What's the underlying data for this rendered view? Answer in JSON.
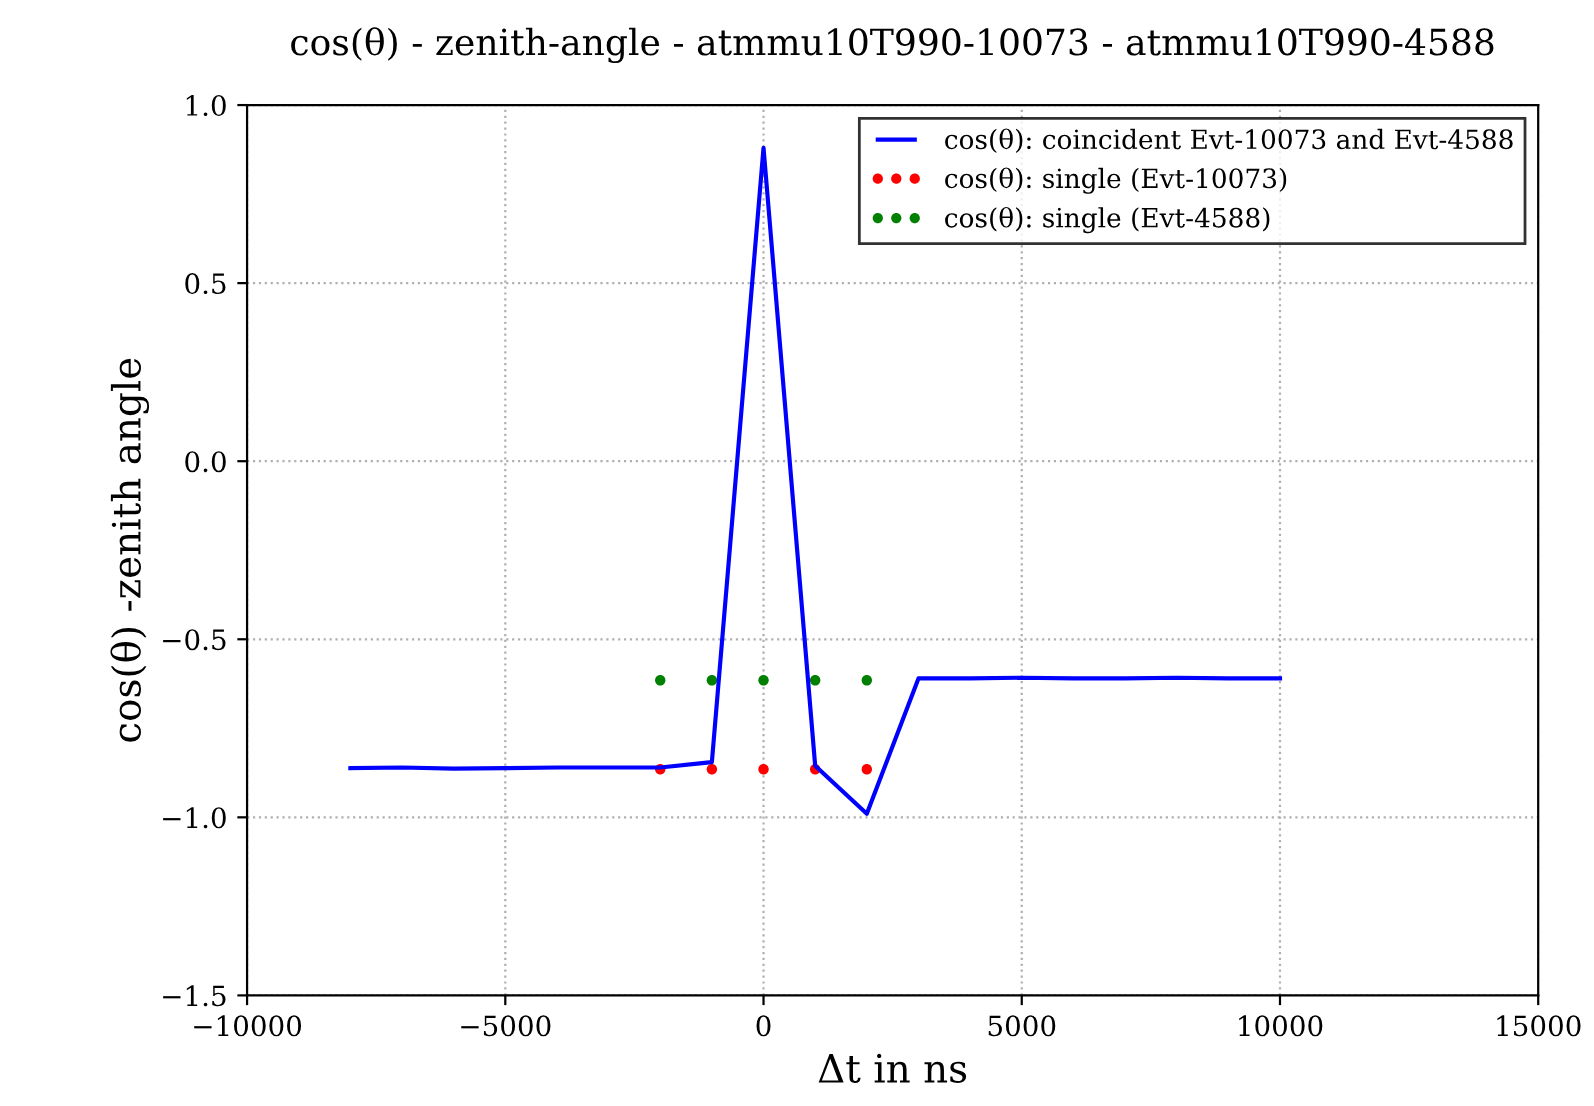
{
  "chart_data": {
    "type": "line",
    "title": "cos(θ) - zenith-angle - atmmu10T990-10073 - atmmu10T990-4588",
    "xlabel": "Δt in ns",
    "ylabel": "cos(θ) -zenith angle",
    "xlim": [
      -10000,
      15000
    ],
    "xticks": [
      {
        "value": -10000,
        "label": "−10000"
      },
      {
        "value": -5000,
        "label": "−5000"
      },
      0,
      5000,
      10000,
      15000
    ],
    "ylim": [
      -1.5,
      1.0
    ],
    "yticks": [
      {
        "value": -1.5,
        "label": "−1.5"
      },
      {
        "value": -1.0,
        "label": "−1.0"
      },
      {
        "value": -0.5,
        "label": "−0.5"
      },
      {
        "value": 0.0,
        "label": "0.0"
      },
      {
        "value": 0.5,
        "label": "0.5"
      },
      {
        "value": 1.0,
        "label": "1.0"
      }
    ],
    "grid": true,
    "legend": "top right",
    "series": [
      {
        "name": "cos(θ): coincident Evt-10073 and Evt-4588",
        "color": "#0000ff",
        "x": [
          -8000,
          -7000,
          -6000,
          -5000,
          -4000,
          -3000,
          -2000,
          -1000,
          0,
          1000,
          2000,
          3000,
          4000,
          5000,
          6000,
          7000,
          8000,
          9000,
          10000
        ],
        "values": [
          -0.862,
          -0.86,
          -0.863,
          -0.862,
          -0.86,
          -0.86,
          -0.86,
          -0.845,
          0.88,
          -0.855,
          -0.99,
          -0.61,
          -0.61,
          -0.608,
          -0.61,
          -0.61,
          -0.608,
          -0.61,
          -0.61
        ]
      },
      {
        "name": "cos(θ): single (Evt-10073)",
        "type": "scatter",
        "color": "#ff0000",
        "x": [
          -2000,
          -1000,
          0,
          1000,
          2000
        ],
        "values": [
          -0.865,
          -0.865,
          -0.865,
          -0.865,
          -0.865
        ]
      },
      {
        "name": "cos(θ): single (Evt-4588)",
        "type": "scatter",
        "color": "#008000",
        "x": [
          -2000,
          -1000,
          0,
          1000,
          2000
        ],
        "values": [
          -0.615,
          -0.615,
          -0.615,
          -0.615,
          -0.615
        ]
      }
    ]
  }
}
